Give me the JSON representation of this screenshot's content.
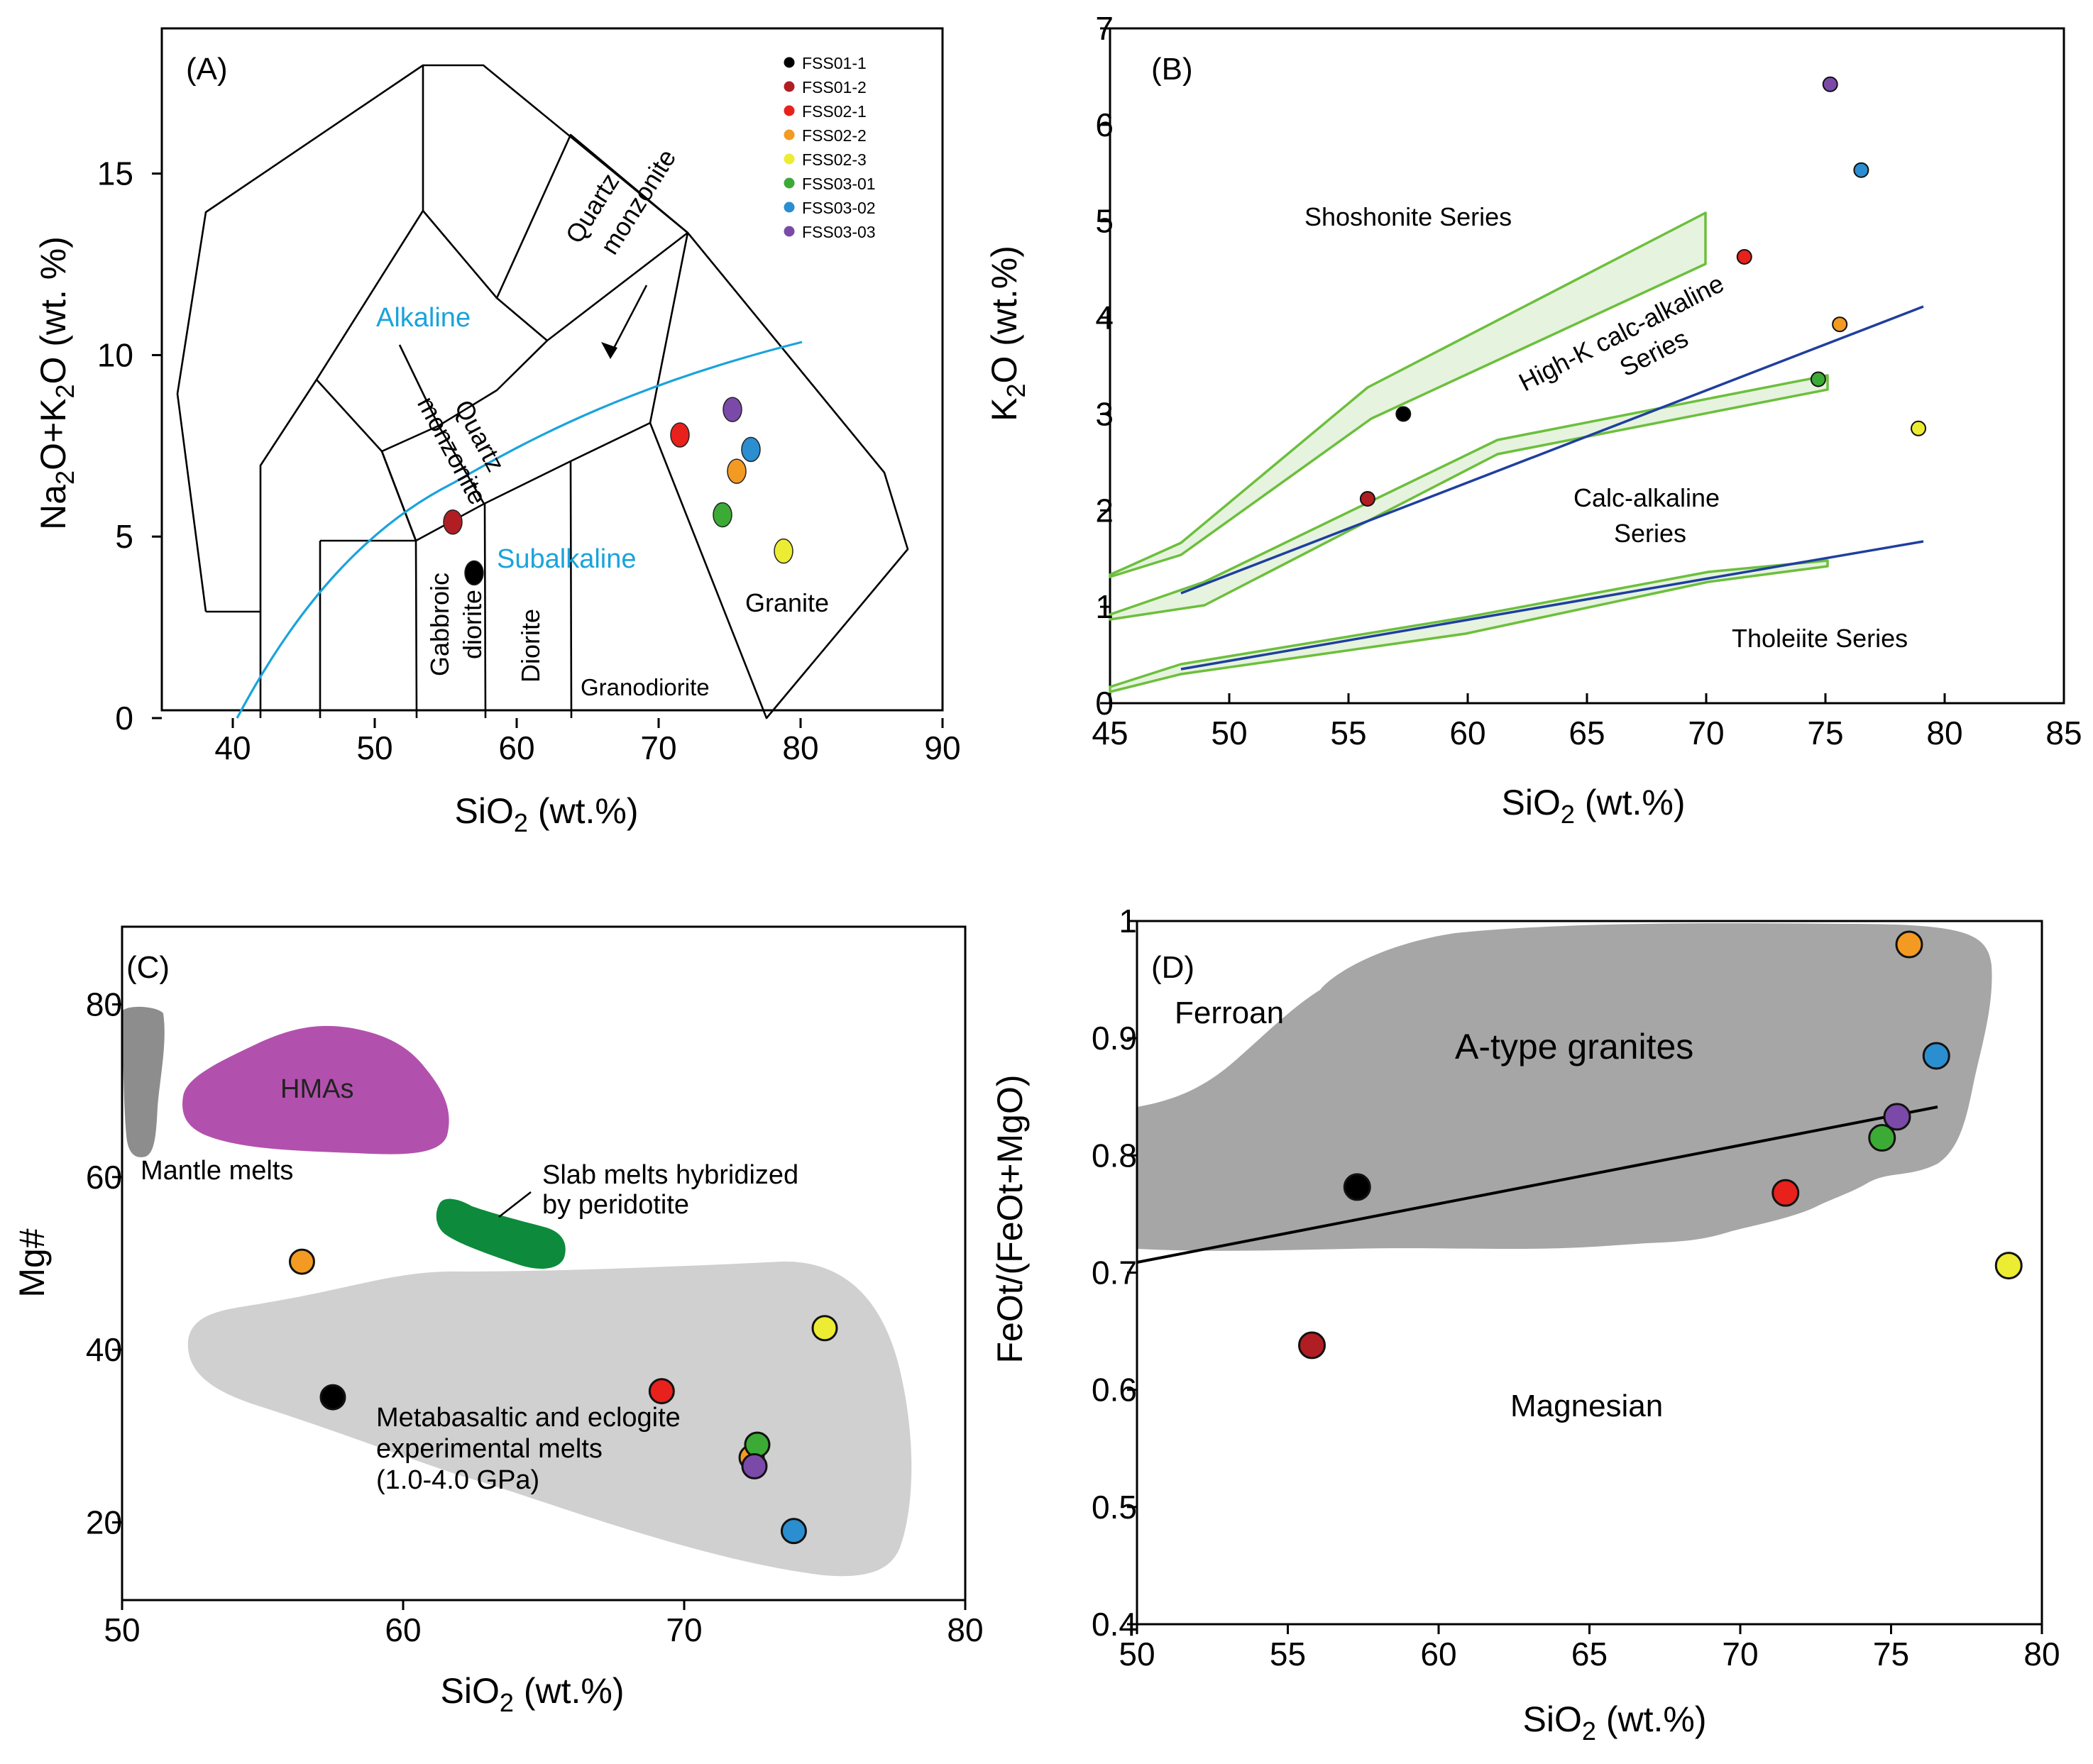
{
  "figure": {
    "colors": {
      "FSS01-1": "#000000",
      "FSS01-2": "#b01e23",
      "FSS02-1": "#e8211d",
      "FSS02-2": "#f39a23",
      "FSS02-3": "#ecec32",
      "FSS03-01": "#3bab35",
      "FSS03-02": "#2a8ed0",
      "FSS03-03": "#7b4aa8"
    }
  },
  "chart_data": [
    {
      "type": "scatter",
      "panel": "(A)",
      "xlabel": "SiO2 (wt.%)",
      "ylabel": "Na2O+K2O (wt. %)",
      "xlim": [
        35,
        90
      ],
      "ylim": [
        0,
        19
      ],
      "xticks": [
        "40",
        "50",
        "60",
        "70",
        "80",
        "90"
      ],
      "yticks": [
        "0",
        "5",
        "10",
        "15"
      ],
      "legend": [
        "FSS01-1",
        "FSS01-2",
        "FSS02-1",
        "FSS02-2",
        "FSS02-3",
        "FSS03-01",
        "FSS03-02",
        "FSS03-03"
      ],
      "legend_position": "top-right",
      "field_labels": [
        "Quartz monzonite",
        "Quartz monzonite",
        "Gabbroic diorite",
        "Diorite",
        "Granodiorite",
        "Granite"
      ],
      "series_labels": [
        "Alkaline",
        "Subalkaline"
      ],
      "points": [
        {
          "sample": "FSS01-1",
          "x": 57.0,
          "y": 4.0
        },
        {
          "sample": "FSS01-2",
          "x": 55.5,
          "y": 5.4
        },
        {
          "sample": "FSS02-1",
          "x": 71.5,
          "y": 7.8
        },
        {
          "sample": "FSS02-2",
          "x": 75.5,
          "y": 6.8
        },
        {
          "sample": "FSS02-3",
          "x": 78.8,
          "y": 4.6
        },
        {
          "sample": "FSS03-01",
          "x": 74.5,
          "y": 5.6
        },
        {
          "sample": "FSS03-02",
          "x": 76.5,
          "y": 7.4
        },
        {
          "sample": "FSS03-03",
          "x": 75.2,
          "y": 8.5
        }
      ]
    },
    {
      "type": "scatter",
      "panel": "(B)",
      "xlabel": "SiO2 (wt.%)",
      "ylabel": "K2O (wt.%)",
      "xlim": [
        45,
        85
      ],
      "ylim": [
        0,
        7
      ],
      "xticks": [
        "45",
        "50",
        "55",
        "60",
        "65",
        "70",
        "75",
        "80",
        "85"
      ],
      "yticks": [
        "0",
        "1",
        "2",
        "3",
        "4",
        "5",
        "6",
        "7"
      ],
      "field_labels": [
        "Shoshonite Series",
        "High-K calc-alkaline",
        "Series",
        "Calc-alkaline",
        "Series",
        "Tholeiite Series"
      ],
      "points": [
        {
          "sample": "FSS01-1",
          "x": 57.3,
          "y": 3.0
        },
        {
          "sample": "FSS01-2",
          "x": 55.8,
          "y": 2.12
        },
        {
          "sample": "FSS02-1",
          "x": 71.6,
          "y": 4.63
        },
        {
          "sample": "FSS02-2",
          "x": 75.6,
          "y": 3.93
        },
        {
          "sample": "FSS02-3",
          "x": 78.9,
          "y": 2.85
        },
        {
          "sample": "FSS03-01",
          "x": 74.7,
          "y": 3.36
        },
        {
          "sample": "FSS03-02",
          "x": 76.5,
          "y": 5.53
        },
        {
          "sample": "FSS03-03",
          "x": 75.2,
          "y": 6.42
        }
      ]
    },
    {
      "type": "scatter",
      "panel": "(C)",
      "xlabel": "SiO2 (wt.%)",
      "ylabel": "Mg#",
      "xlim": [
        50,
        80
      ],
      "ylim": [
        11,
        89
      ],
      "xticks": [
        "50",
        "60",
        "70",
        "80"
      ],
      "yticks": [
        "20",
        "40",
        "60",
        "80"
      ],
      "field_labels": [
        "HMAs",
        "Mantle melts",
        "Slab melts hybridized",
        "by peridotite",
        "Metabasaltic and eclogite",
        "experimental melts",
        "(1.0-4.0 GPa)"
      ],
      "points": [
        {
          "sample": "FSS01-1",
          "x": 57.5,
          "y": 34.5
        },
        {
          "sample": "FSS02-2",
          "x": 56.4,
          "y": 50.2
        },
        {
          "sample": "FSS02-1",
          "x": 69.2,
          "y": 35.2
        },
        {
          "sample": "FSS02-3",
          "x": 75.0,
          "y": 42.5
        },
        {
          "sample": "FSS02-2",
          "x": 72.4,
          "y": 27.5
        },
        {
          "sample": "FSS03-01",
          "x": 72.6,
          "y": 29.0
        },
        {
          "sample": "FSS03-03",
          "x": 72.5,
          "y": 26.5
        },
        {
          "sample": "FSS03-02",
          "x": 73.9,
          "y": 19.0
        }
      ]
    },
    {
      "type": "scatter",
      "panel": "(D)",
      "xlabel": "SiO2 (wt.%)",
      "ylabel": "FeOt/(FeOt+MgO)",
      "xlim": [
        50,
        80
      ],
      "ylim": [
        0.4,
        1.0
      ],
      "xticks": [
        "50",
        "55",
        "60",
        "65",
        "70",
        "75",
        "80"
      ],
      "yticks": [
        "0.4",
        "0.5",
        "0.6",
        "0.7",
        "0.8",
        "0.9",
        "1"
      ],
      "field_labels": [
        "Ferroan",
        "A-type granites",
        "Magnesian"
      ],
      "points": [
        {
          "sample": "FSS01-1",
          "x": 57.3,
          "y": 0.773
        },
        {
          "sample": "FSS01-2",
          "x": 55.8,
          "y": 0.638
        },
        {
          "sample": "FSS02-1",
          "x": 71.5,
          "y": 0.768
        },
        {
          "sample": "FSS02-2",
          "x": 75.6,
          "y": 0.98
        },
        {
          "sample": "FSS02-3",
          "x": 78.9,
          "y": 0.706
        },
        {
          "sample": "FSS03-01",
          "x": 74.7,
          "y": 0.815
        },
        {
          "sample": "FSS03-02",
          "x": 76.5,
          "y": 0.885
        },
        {
          "sample": "FSS03-03",
          "x": 75.2,
          "y": 0.833
        }
      ]
    }
  ]
}
